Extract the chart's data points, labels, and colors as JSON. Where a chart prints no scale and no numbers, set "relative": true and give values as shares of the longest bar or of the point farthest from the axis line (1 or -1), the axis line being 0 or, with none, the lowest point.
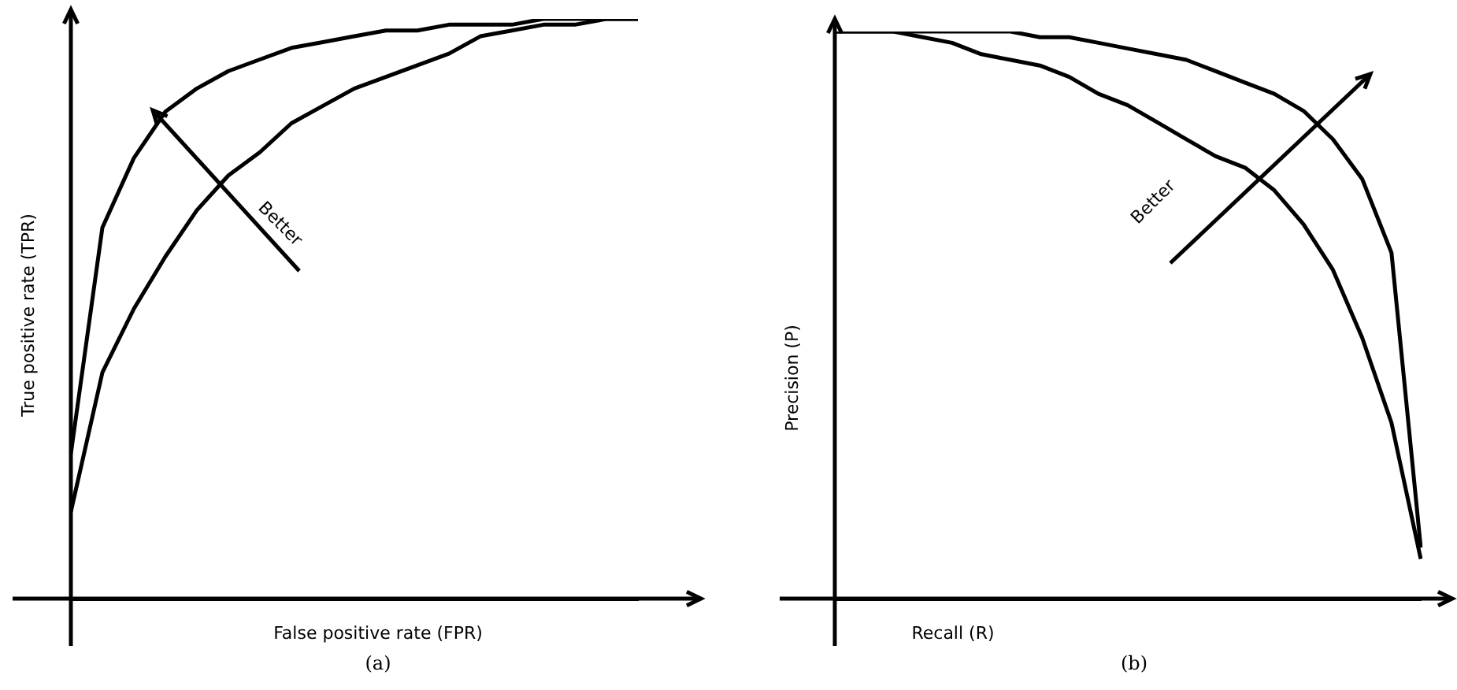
{
  "chart_data": [
    {
      "type": "line",
      "relative": true,
      "xlabel": "False positive rate (FPR)",
      "ylabel": "True positive rate (TPR)",
      "annotations": [
        "Better",
        "(a)"
      ],
      "legend": false,
      "marker": "none",
      "line_style": "solid",
      "categories": [
        null,
        null,
        null,
        null,
        null,
        null,
        null,
        null,
        null,
        null,
        null,
        null,
        null,
        null,
        null,
        null,
        null,
        null,
        null
      ],
      "series": [
        {
          "color": "#000000",
          "values": [
            0.25,
            0.64,
            0.76,
            0.84,
            0.88,
            0.91,
            0.93,
            0.95,
            0.96,
            0.97,
            0.98,
            0.98,
            0.99,
            0.99,
            0.99,
            1,
            1,
            1,
            1
          ]
        },
        {
          "color": "#000000",
          "values": [
            0.15,
            0.39,
            0.5,
            0.59,
            0.67,
            0.73,
            0.77,
            0.82,
            0.85,
            0.88,
            0.9,
            0.92,
            0.94,
            0.97,
            0.98,
            0.99,
            0.99,
            1,
            1
          ]
        }
      ]
    },
    {
      "type": "line",
      "relative": true,
      "xlabel": "Recall (R)",
      "ylabel": "Precision (P)",
      "annotations": [
        "Better",
        "(b)"
      ],
      "legend": false,
      "marker": "none",
      "line_style": "solid",
      "categories": [
        null,
        null,
        null,
        null,
        null,
        null,
        null,
        null,
        null,
        null,
        null,
        null,
        null,
        null,
        null,
        null,
        null,
        null,
        null,
        null,
        null
      ],
      "series": [
        {
          "color": "#000000",
          "values": [
            1,
            1,
            1,
            0.99,
            0.98,
            0.96,
            0.95,
            0.94,
            0.92,
            0.89,
            0.87,
            0.84,
            0.81,
            0.78,
            0.76,
            0.72,
            0.66,
            0.58,
            0.46,
            0.31,
            0.07
          ]
        },
        {
          "color": "#000000",
          "values": [
            1,
            1,
            1,
            1,
            1,
            1,
            1,
            0.99,
            0.99,
            0.98,
            0.97,
            0.96,
            0.95,
            0.93,
            0.91,
            0.89,
            0.86,
            0.81,
            0.74,
            0.61,
            0.09
          ]
        }
      ]
    }
  ]
}
